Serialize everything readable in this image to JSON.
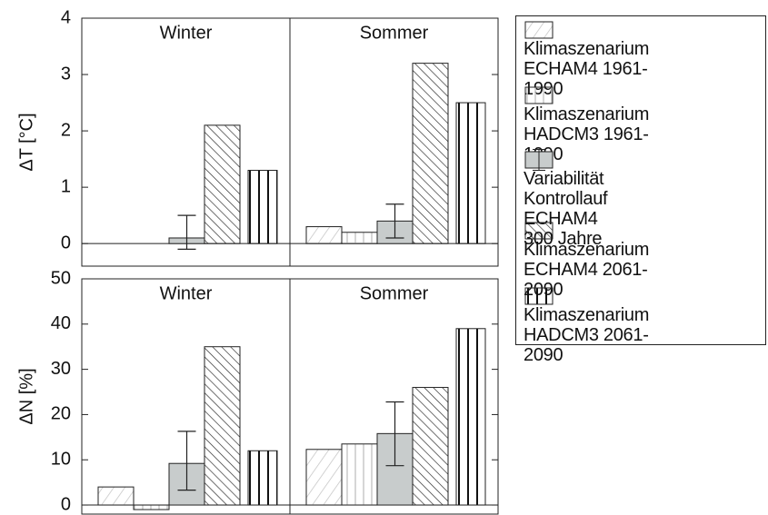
{
  "chart_data": [
    {
      "type": "bar",
      "ylabel": "ΔT [°C]",
      "categories": [
        "Winter",
        "Sommer"
      ],
      "ylim": [
        -0.4,
        4
      ],
      "yticks": [
        0,
        1,
        2,
        3,
        4
      ],
      "series": [
        {
          "name": "Klimaszenarium\nECHAM4  1961-1990",
          "pattern": "diag-light",
          "values": [
            0,
            0.3
          ]
        },
        {
          "name": "Klimaszenarium\nHADCM3  1961-1990",
          "pattern": "vert-light",
          "values": [
            0,
            0.2
          ]
        },
        {
          "name": "Variabilität Kontrollauf\nECHAM4  300 Jahre",
          "pattern": "solid",
          "color": "#c8cccc",
          "values": [
            0.1,
            0.4
          ],
          "error_low": [
            -0.1,
            0.1
          ],
          "error_high": [
            0.5,
            0.7
          ]
        },
        {
          "name": "Klimaszenarium\nECHAM4  2061-2090",
          "pattern": "diag-dense",
          "values": [
            2.1,
            3.2
          ]
        },
        {
          "name": "Klimaszenarium\nHADCM3  2061-2090",
          "pattern": "vert-bold",
          "values": [
            1.3,
            2.5
          ]
        }
      ]
    },
    {
      "type": "bar",
      "ylabel": "ΔN [%]",
      "categories": [
        "Winter",
        "Sommer"
      ],
      "ylim": [
        -2,
        50
      ],
      "yticks": [
        0,
        10,
        20,
        30,
        40,
        50
      ],
      "series": [
        {
          "pattern": "diag-light",
          "values": [
            4,
            12.3
          ]
        },
        {
          "pattern": "vert-light",
          "values": [
            -1,
            13.5
          ]
        },
        {
          "pattern": "solid",
          "color": "#c8cccc",
          "values": [
            9.2,
            15.8
          ],
          "error_low": [
            3.3,
            8.7
          ],
          "error_high": [
            16.3,
            22.8
          ]
        },
        {
          "pattern": "diag-dense",
          "values": [
            35,
            26
          ]
        },
        {
          "pattern": "vert-bold",
          "values": [
            12,
            39
          ]
        }
      ]
    }
  ]
}
